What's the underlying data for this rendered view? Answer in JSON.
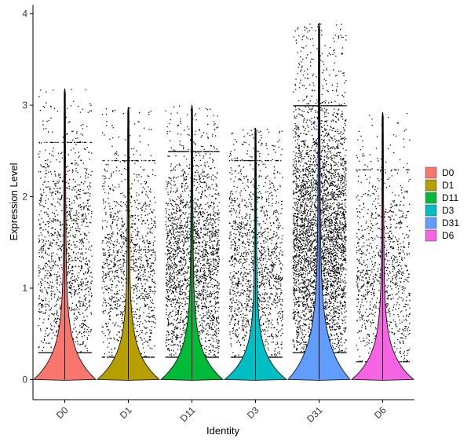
{
  "chart_data": {
    "type": "violin",
    "xlabel": "Identity",
    "ylabel": "Expression Level",
    "ylim": [
      -0.22,
      4.1
    ],
    "yticks": [
      0,
      1,
      2,
      3,
      4
    ],
    "grid": false,
    "legend_position": "right",
    "groups": [
      {
        "name": "D0",
        "color": "#F8766D",
        "max": 3.18,
        "n_points": 1400,
        "median": 0.0,
        "points_min": 0.3,
        "points_max": 2.6,
        "violin_peak_width": 0.48
      },
      {
        "name": "D1",
        "color": "#B79F00",
        "max": 2.98,
        "n_points": 1300,
        "median": 0.0,
        "points_min": 0.25,
        "points_max": 2.4,
        "violin_peak_width": 0.48
      },
      {
        "name": "D11",
        "color": "#00BA38",
        "max": 3.0,
        "n_points": 2400,
        "median": 0.0,
        "points_min": 0.25,
        "points_max": 2.5,
        "violin_peak_width": 0.48
      },
      {
        "name": "D3",
        "color": "#00BFC4",
        "max": 2.75,
        "n_points": 1600,
        "median": 0.0,
        "points_min": 0.25,
        "points_max": 2.4,
        "violin_peak_width": 0.48
      },
      {
        "name": "D31",
        "color": "#619CFF",
        "max": 3.9,
        "n_points": 4200,
        "median": 0.0,
        "points_min": 0.3,
        "points_max": 3.0,
        "violin_peak_width": 0.48
      },
      {
        "name": "D6",
        "color": "#F564E3",
        "max": 2.92,
        "n_points": 1100,
        "median": 0.0,
        "points_min": 0.2,
        "points_max": 2.3,
        "violin_peak_width": 0.48
      }
    ]
  }
}
